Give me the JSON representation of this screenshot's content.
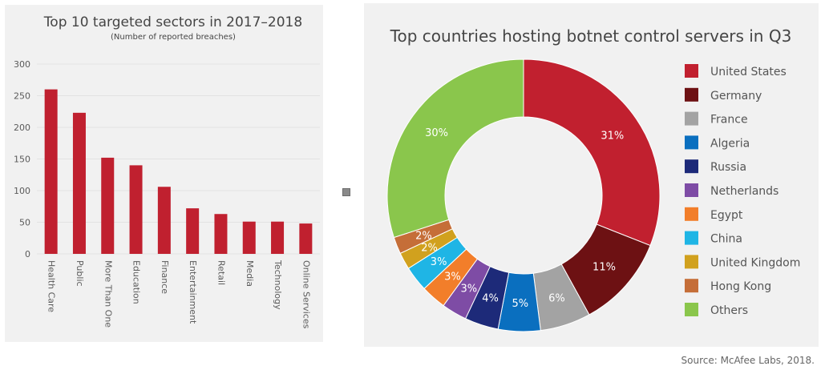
{
  "source": "Source: McAfee Labs, 2018.",
  "colors": {
    "bar": "#c0202f",
    "grid": "#e2e2e2",
    "axis_text": "#5a5a5a",
    "title_text": "#454545",
    "background": "#f1f1f1"
  },
  "chart_data": [
    {
      "type": "bar",
      "title": "Top 10 targeted sectors in 2017–2018",
      "subtitle": "(Number of reported breaches)",
      "categories": [
        "Health Care",
        "Public",
        "More Than One",
        "Education",
        "Finance",
        "Entertainment",
        "Retail",
        "Media",
        "Technology",
        "Online Services"
      ],
      "values": [
        260,
        223,
        152,
        140,
        106,
        72,
        63,
        51,
        51,
        48
      ],
      "ylim": [
        0,
        300
      ],
      "yticks": [
        0,
        50,
        100,
        150,
        200,
        250,
        300
      ],
      "grid": true,
      "xlabel": "",
      "ylabel": ""
    },
    {
      "type": "pie",
      "donut": true,
      "title": "Top countries hosting botnet control servers in Q3",
      "legend_position": "right",
      "slices": [
        {
          "label": "United States",
          "value": 31,
          "text": "31%",
          "color": "#c1202f"
        },
        {
          "label": "Germany",
          "value": 11,
          "text": "11%",
          "color": "#6d1113"
        },
        {
          "label": "France",
          "value": 6,
          "text": "6%",
          "color": "#a3a3a3"
        },
        {
          "label": "Algeria",
          "value": 5,
          "text": "5%",
          "color": "#0a6fbf"
        },
        {
          "label": "Russia",
          "value": 4,
          "text": "4%",
          "color": "#1d2a79"
        },
        {
          "label": "Netherlands",
          "value": 3,
          "text": "3%",
          "color": "#7e4ca5"
        },
        {
          "label": "Egypt",
          "value": 3,
          "text": "3%",
          "color": "#f27e2a"
        },
        {
          "label": "China",
          "value": 3,
          "text": "3%",
          "color": "#1fb5e5"
        },
        {
          "label": "United Kingdom",
          "value": 2,
          "text": "2%",
          "color": "#d1a11e"
        },
        {
          "label": "Hong Kong",
          "value": 2,
          "text": "2%",
          "color": "#c56e38"
        },
        {
          "label": "Others",
          "value": 30,
          "text": "30%",
          "color": "#8ac64c"
        }
      ]
    }
  ]
}
